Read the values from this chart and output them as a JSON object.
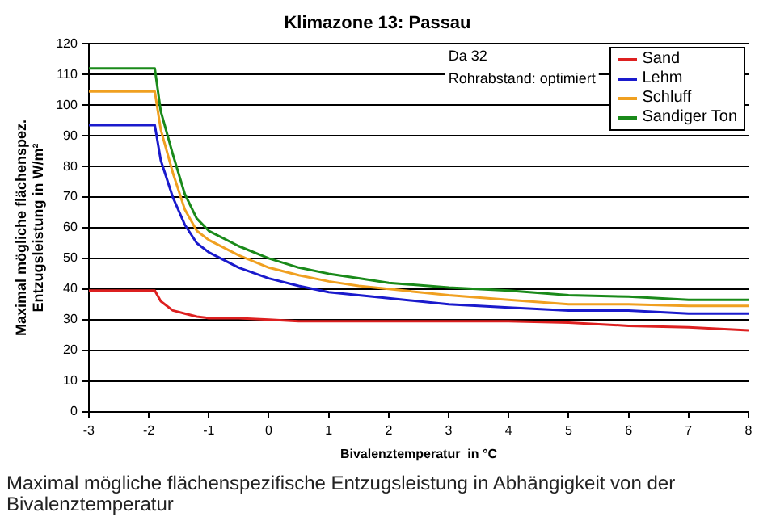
{
  "chart_data": {
    "type": "line",
    "title": "Klimazone 13: Passau",
    "xlabel": "Bivalenztemperatur  in °C",
    "ylabel": "Maximal mögliche flächenspez.\nEntzugsleistung in W/m²",
    "annotations": [
      "Da 32",
      "Rohrabstand: optimiert",
      "Maximal mögliche flächenspezifische Entzugsleistung in Abhängigkeit von der Bivalenztemperatur"
    ],
    "x": [
      -3,
      -1.9,
      -1.8,
      -1.6,
      -1.4,
      -1.2,
      -1,
      -0.5,
      0,
      0.5,
      1,
      1.5,
      2,
      3,
      4,
      5,
      6,
      7,
      8
    ],
    "series": [
      {
        "name": "Sand",
        "color": "#dd2020",
        "values": [
          39.5,
          39.5,
          36,
          33,
          32,
          31,
          30.5,
          30.5,
          30,
          29.5,
          29.5,
          29.5,
          29.5,
          29.5,
          29.5,
          29,
          28,
          27.5,
          26.5
        ]
      },
      {
        "name": "Lehm",
        "color": "#1a1acc",
        "values": [
          93.5,
          93.5,
          82,
          70,
          61,
          55,
          52,
          47,
          43.5,
          41,
          39,
          38,
          37,
          35,
          34,
          33,
          33,
          32,
          32
        ]
      },
      {
        "name": "Schluff",
        "color": "#f0a020",
        "values": [
          104.5,
          104.5,
          92,
          78,
          66,
          59,
          56,
          51,
          47,
          44.5,
          42.5,
          41,
          40,
          38,
          36.5,
          35,
          35,
          34.5,
          34.5
        ]
      },
      {
        "name": "Sandiger Ton",
        "color": "#1a8a1a",
        "values": [
          112,
          112,
          98,
          84,
          71,
          63,
          59,
          54,
          50,
          47,
          45,
          43.5,
          42,
          40.5,
          39.5,
          38,
          37.5,
          36.5,
          36.5
        ]
      }
    ],
    "xlim": [
      -3,
      8
    ],
    "xticks": [
      -3,
      -2,
      -1,
      0,
      1,
      2,
      3,
      4,
      5,
      6,
      7,
      8
    ],
    "ylim": [
      0,
      120
    ],
    "yticks": [
      0,
      10,
      20,
      30,
      40,
      50,
      60,
      70,
      80,
      90,
      100,
      110,
      120
    ],
    "grid": "y",
    "legend": "top right",
    "marker": "none",
    "line_style": "solid"
  }
}
